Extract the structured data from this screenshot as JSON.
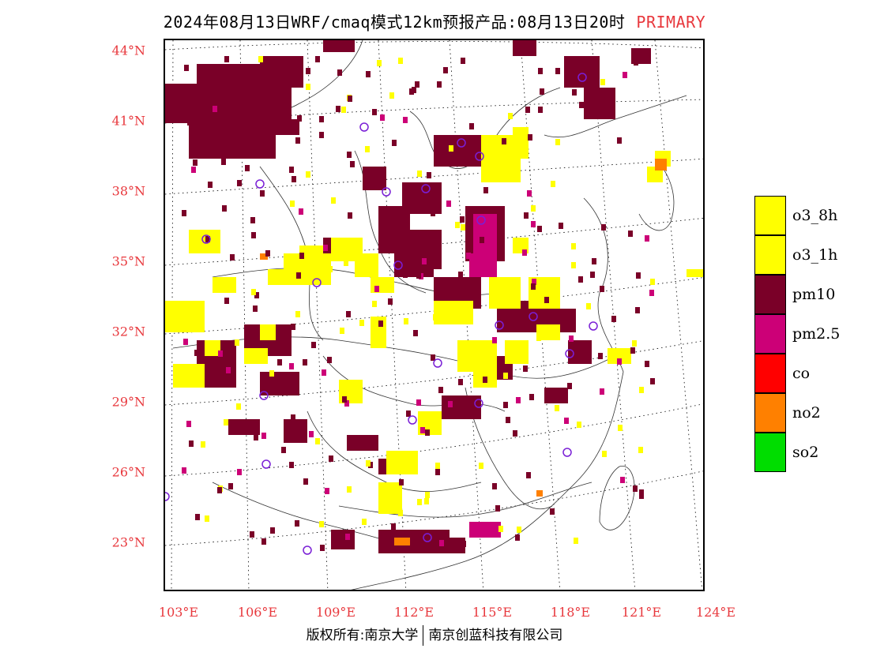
{
  "header": {
    "title": "2024年08月13日WRF/cmaq模式12km预报产品:08月13日20时",
    "status": "PRIMARY"
  },
  "axes": {
    "lat_labels": [
      "44°N",
      "41°N",
      "38°N",
      "35°N",
      "32°N",
      "29°N",
      "26°N",
      "23°N"
    ],
    "lon_labels": [
      "103°E",
      "106°E",
      "109°E",
      "112°E",
      "115°E",
      "118°E",
      "121°E",
      "124°E"
    ]
  },
  "legend": {
    "items": [
      {
        "label": "o3_8h",
        "color": "#ffff00"
      },
      {
        "label": "o3_1h",
        "color": "#ffff00"
      },
      {
        "label": "pm10",
        "color": "#7a0028"
      },
      {
        "label": "pm2.5",
        "color": "#cc0077"
      },
      {
        "label": "co",
        "color": "#ff0000"
      },
      {
        "label": "no2",
        "color": "#ff8000"
      },
      {
        "label": "so2",
        "color": "#00dd00"
      }
    ]
  },
  "footer": {
    "copyright_left": "版权所有:南京大学",
    "copyright_right": "南京创蓝科技有限公司"
  }
}
